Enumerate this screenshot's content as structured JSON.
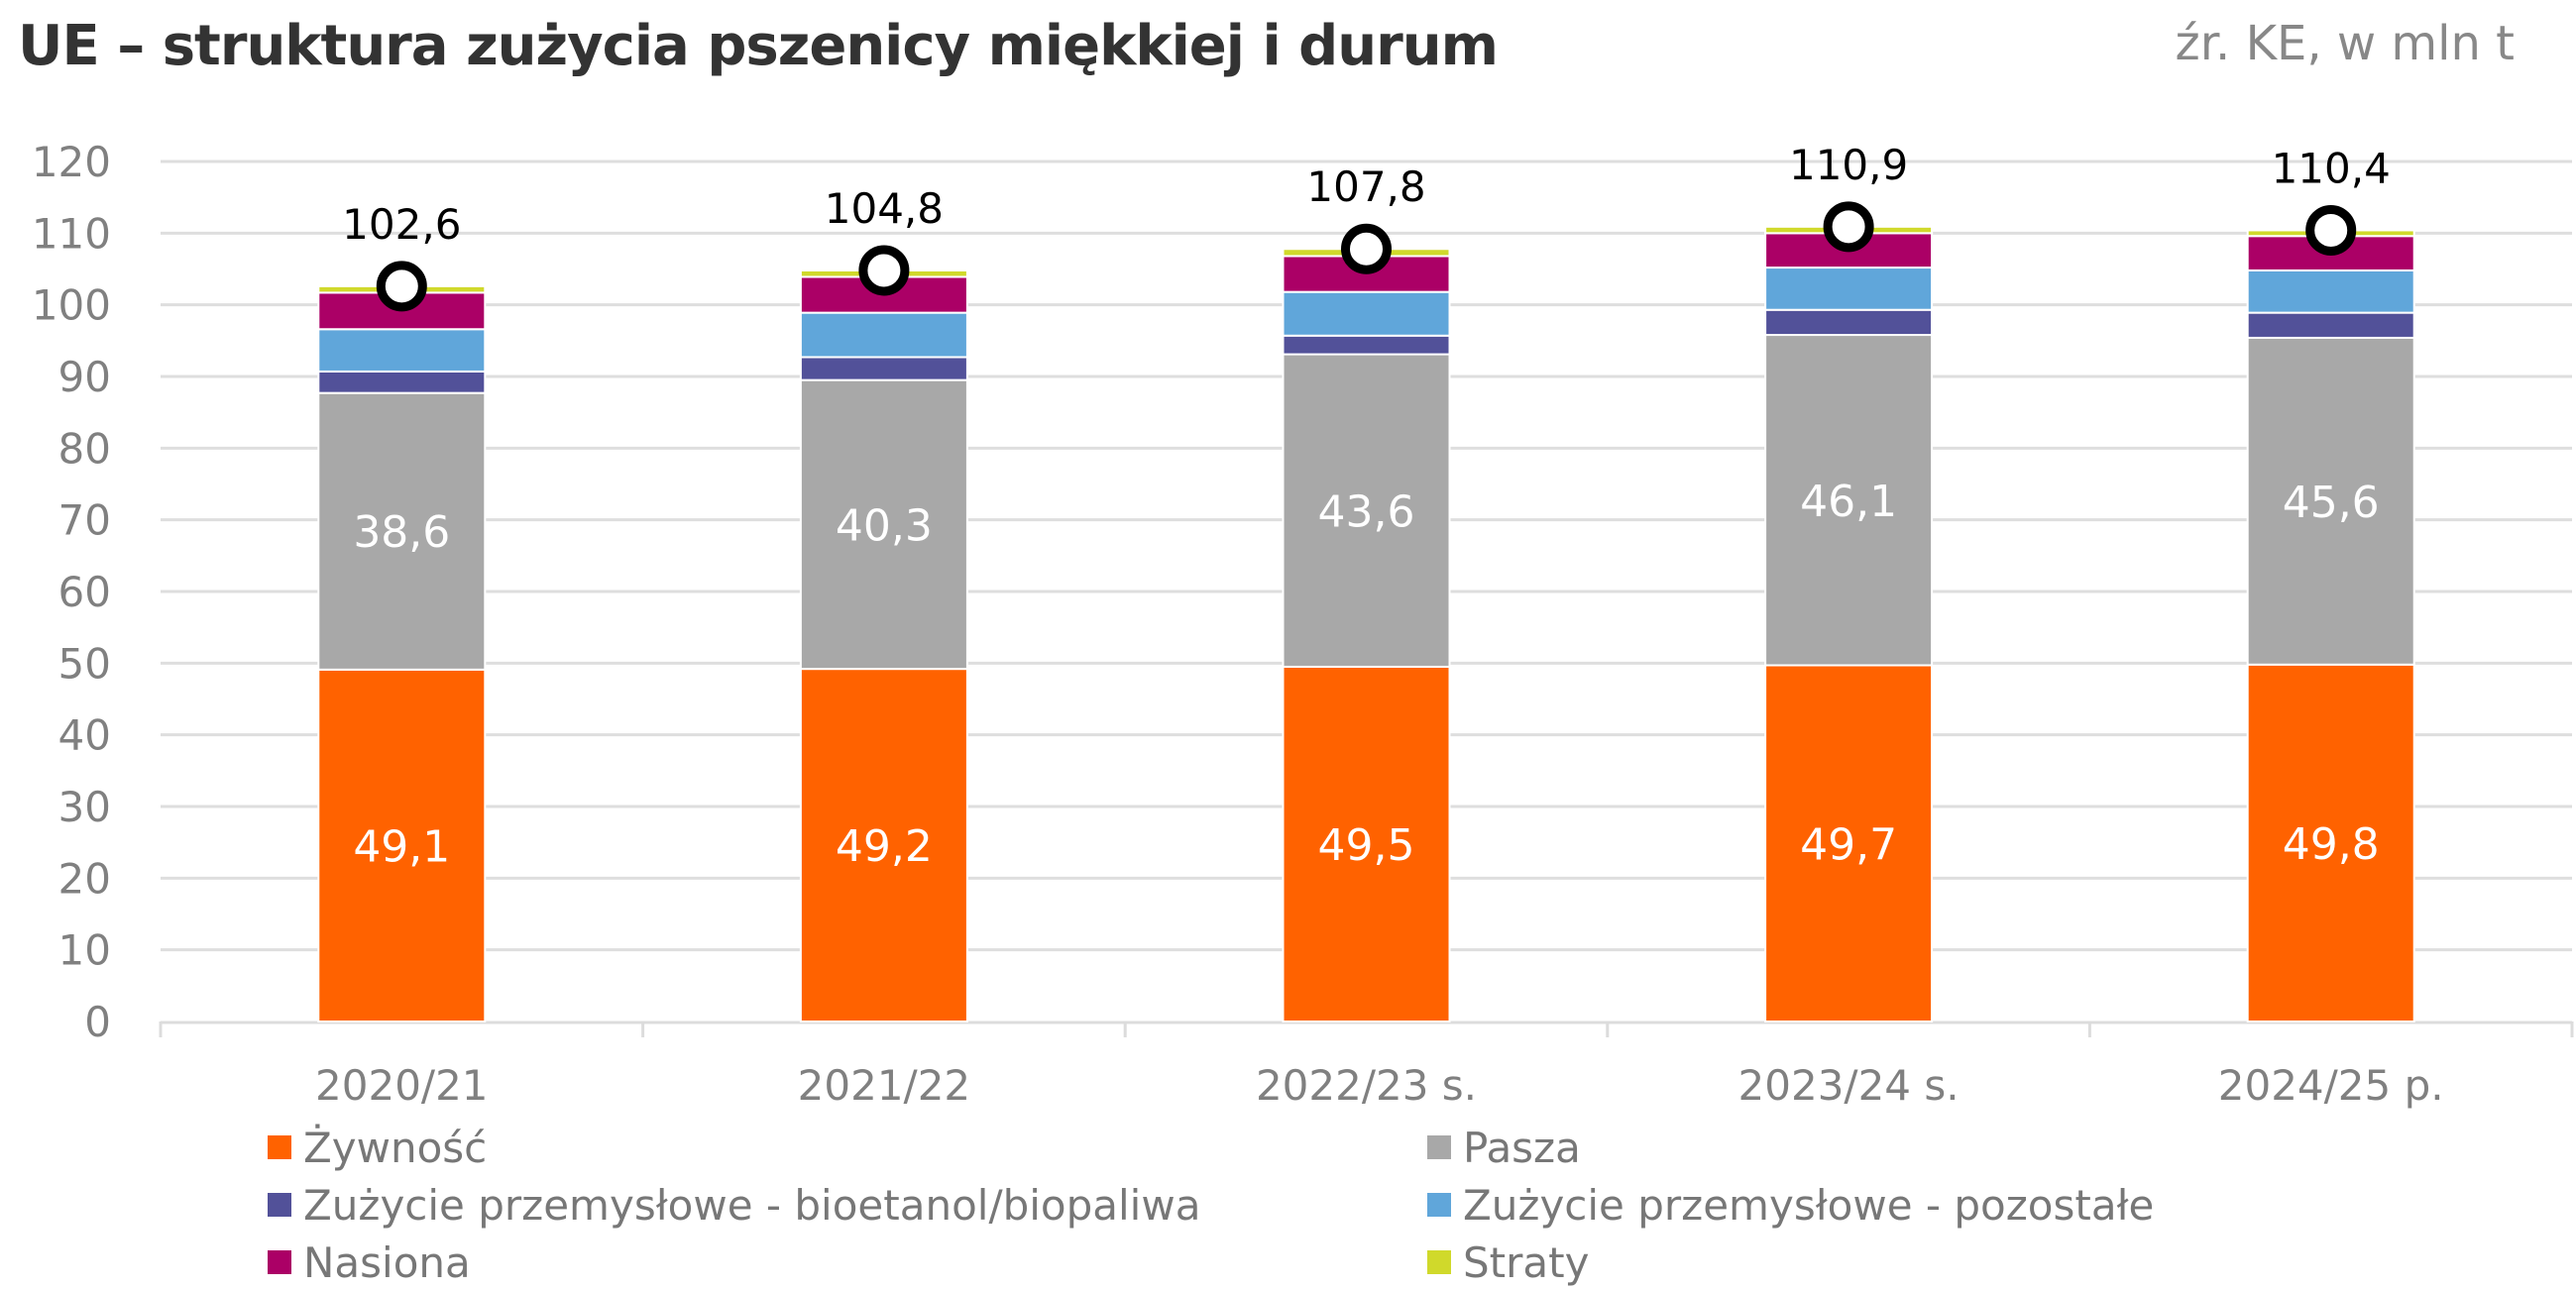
{
  "header": {
    "title": "UE – struktura zużycia pszenicy miękkiej i durum",
    "source": "źr. KE, w mln t"
  },
  "chart_data": {
    "type": "bar",
    "stacked": true,
    "title": "UE – struktura zużycia pszenicy miękkiej i durum",
    "subtitle": "źr. KE, w mln t",
    "xlabel": "",
    "ylabel": "",
    "ylim": [
      0,
      120
    ],
    "yticks": [
      0,
      10,
      20,
      30,
      40,
      50,
      60,
      70,
      80,
      90,
      100,
      110,
      120
    ],
    "grid": true,
    "legend_position": "bottom",
    "categories": [
      "2020/21",
      "2021/22",
      "2022/23 s.",
      "2023/24 s.",
      "2024/25 p."
    ],
    "series": [
      {
        "name": "Żywność",
        "color": "#FF6200",
        "values": [
          49.1,
          49.2,
          49.5,
          49.7,
          49.8
        ],
        "labels": [
          "49,1",
          "49,2",
          "49,5",
          "49,7",
          "49,8"
        ]
      },
      {
        "name": "Pasza",
        "color": "#A8A8A8",
        "values": [
          38.6,
          40.3,
          43.6,
          46.1,
          45.6
        ],
        "labels": [
          "38,6",
          "40,3",
          "43,6",
          "46,1",
          "45,6"
        ]
      },
      {
        "name": "Zużycie przemysłowe - bioetanol/biopaliwa",
        "color": "#525199",
        "values": [
          3.0,
          3.2,
          2.6,
          3.5,
          3.5
        ]
      },
      {
        "name": "Zużycie przemysłowe - pozostałe",
        "color": "#60A6DA",
        "values": [
          5.9,
          6.2,
          6.1,
          5.9,
          5.9
        ]
      },
      {
        "name": "Nasiona",
        "color": "#AB0066",
        "values": [
          5.1,
          5.0,
          5.0,
          4.8,
          4.8
        ]
      },
      {
        "name": "Straty",
        "color": "#D0D92B",
        "values": [
          0.9,
          0.9,
          1.0,
          0.9,
          0.8
        ]
      }
    ],
    "totals": {
      "name": "Razem",
      "values": [
        102.6,
        104.8,
        107.8,
        110.9,
        110.4
      ],
      "labels": [
        "102,6",
        "104,8",
        "107,8",
        "110,9",
        "110,4"
      ],
      "marker": "circle"
    }
  },
  "legend": [
    {
      "label": "Żywność",
      "color": "#FF6200"
    },
    {
      "label": "Pasza",
      "color": "#A8A8A8"
    },
    {
      "label": "Zużycie przemysłowe - bioetanol/biopaliwa",
      "color": "#525199"
    },
    {
      "label": "Zużycie przemysłowe - pozostałe",
      "color": "#60A6DA"
    },
    {
      "label": "Nasiona",
      "color": "#AB0066"
    },
    {
      "label": "Straty",
      "color": "#D0D92B"
    }
  ]
}
